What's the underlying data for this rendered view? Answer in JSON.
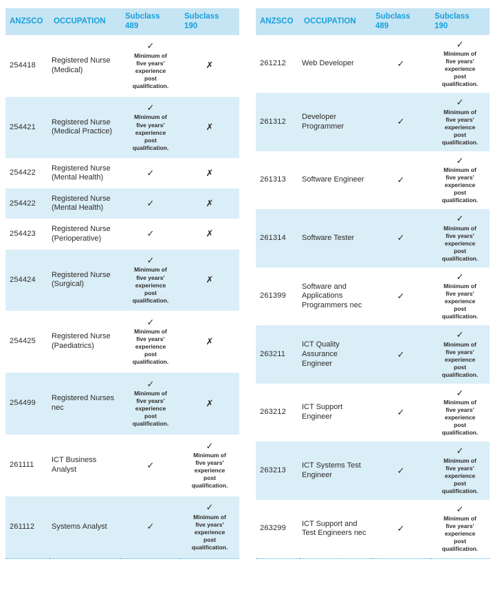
{
  "headers": [
    "ANZSCO",
    "OCCUPATION",
    "Subclass\n489",
    "Subclass\n190"
  ],
  "marks": {
    "check": "✓",
    "cross": "✗"
  },
  "experience_note": "Minimum of five years’ experience post qualification.",
  "colors": {
    "header_bg": "#c6e5f4",
    "header_text": "#189fdb",
    "row_alt_bg": "#daeef8",
    "body_text": "#2d2a26",
    "dotted_rule": "#29abe2"
  },
  "tables": [
    {
      "name": "nursing-occupations",
      "rows": [
        {
          "anzsco": "254418",
          "occupation": "Registered Nurse (Medical)",
          "s489": {
            "mark": "✓",
            "note": "Minimum of five years’ experience post qualification."
          },
          "s190": {
            "mark": "✗",
            "note": ""
          }
        },
        {
          "anzsco": "254421",
          "occupation": "Registered Nurse (Medical Practice)",
          "s489": {
            "mark": "✓",
            "note": "Minimum of five years’ experience post qualification."
          },
          "s190": {
            "mark": "✗",
            "note": ""
          }
        },
        {
          "anzsco": "254422",
          "occupation": "Registered Nurse (Mental Health)",
          "s489": {
            "mark": "✓",
            "note": ""
          },
          "s190": {
            "mark": "✗",
            "note": ""
          }
        },
        {
          "anzsco": "254422",
          "occupation": "Registered Nurse (Mental Health)",
          "s489": {
            "mark": "✓",
            "note": ""
          },
          "s190": {
            "mark": "✗",
            "note": ""
          }
        },
        {
          "anzsco": "254423",
          "occupation": "Registered Nurse (Perioperative)",
          "s489": {
            "mark": "✓",
            "note": ""
          },
          "s190": {
            "mark": "✗",
            "note": ""
          }
        },
        {
          "anzsco": "254424",
          "occupation": "Registered Nurse (Surgical)",
          "s489": {
            "mark": "✓",
            "note": "Minimum of five years’ experience post qualification."
          },
          "s190": {
            "mark": "✗",
            "note": ""
          }
        },
        {
          "anzsco": "254425",
          "occupation": "Registered Nurse (Paediatrics)",
          "s489": {
            "mark": "✓",
            "note": "Minimum of five years’ experience post qualification."
          },
          "s190": {
            "mark": "✗",
            "note": ""
          }
        },
        {
          "anzsco": "254499",
          "occupation": "Registered Nurses nec",
          "s489": {
            "mark": "✓",
            "note": "Minimum of five years’ experience post qualification."
          },
          "s190": {
            "mark": "✗",
            "note": ""
          }
        },
        {
          "anzsco": "261111",
          "occupation": "ICT Business Analyst",
          "s489": {
            "mark": "✓",
            "note": ""
          },
          "s190": {
            "mark": "✓",
            "note": "Minimum of five years’ experience post qualification."
          }
        },
        {
          "anzsco": "261112",
          "occupation": "Systems Analyst",
          "s489": {
            "mark": "✓",
            "note": ""
          },
          "s190": {
            "mark": "✓",
            "note": "Minimum of five years’ experience post qualification."
          }
        }
      ]
    },
    {
      "name": "ict-occupations",
      "rows": [
        {
          "anzsco": "261212",
          "occupation": "Web Developer",
          "s489": {
            "mark": "✓",
            "note": ""
          },
          "s190": {
            "mark": "✓",
            "note": "Minimum of five years’ experience post qualification."
          }
        },
        {
          "anzsco": "261312",
          "occupation": "Developer Programmer",
          "s489": {
            "mark": "✓",
            "note": ""
          },
          "s190": {
            "mark": "✓",
            "note": "Minimum of five years’ experience post qualification."
          }
        },
        {
          "anzsco": "261313",
          "occupation": "Software Engineer",
          "s489": {
            "mark": "✓",
            "note": ""
          },
          "s190": {
            "mark": "✓",
            "note": "Minimum of five years’ experience post qualification."
          }
        },
        {
          "anzsco": "261314",
          "occupation": "Software Tester",
          "s489": {
            "mark": "✓",
            "note": ""
          },
          "s190": {
            "mark": "✓",
            "note": "Minimum of five years’ experience post qualification."
          }
        },
        {
          "anzsco": "261399",
          "occupation": "Software and Applications Programmers nec",
          "s489": {
            "mark": "✓",
            "note": ""
          },
          "s190": {
            "mark": "✓",
            "note": "Minimum of five years’ experience post qualification."
          }
        },
        {
          "anzsco": "263211",
          "occupation": "ICT Quality Assurance Engineer",
          "s489": {
            "mark": "✓",
            "note": ""
          },
          "s190": {
            "mark": "✓",
            "note": "Minimum of five years’ experience post qualification."
          }
        },
        {
          "anzsco": "263212",
          "occupation": "ICT Support Engineer",
          "s489": {
            "mark": "✓",
            "note": ""
          },
          "s190": {
            "mark": "✓",
            "note": "Minimum of five years’ experience post qualification."
          }
        },
        {
          "anzsco": "263213",
          "occupation": "ICT Systems Test Engineer",
          "s489": {
            "mark": "✓",
            "note": ""
          },
          "s190": {
            "mark": "✓",
            "note": "Minimum of five years’ experience post qualification."
          }
        },
        {
          "anzsco": "263299",
          "occupation": "ICT Support and Test Engineers nec",
          "s489": {
            "mark": "✓",
            "note": ""
          },
          "s190": {
            "mark": "✓",
            "note": "Minimum of five years’ experience post qualification."
          }
        }
      ]
    }
  ]
}
